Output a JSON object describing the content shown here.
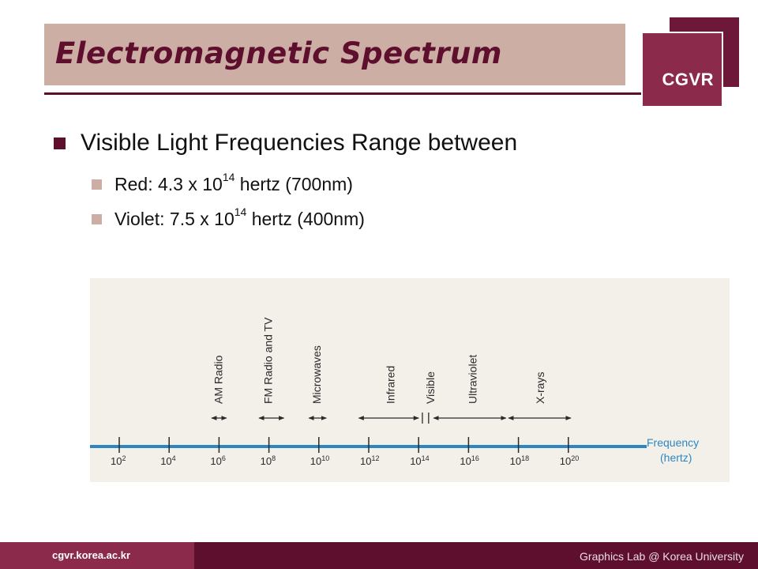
{
  "slide": {
    "title": "Electromagnetic Spectrum",
    "logo": "CGVR",
    "bullet": "Visible Light Frequencies Range between",
    "subbullets": [
      {
        "label": "Red: 4.3 x 10",
        "exponent": "14",
        "suffix": " hertz (700nm)"
      },
      {
        "label": "Violet: 7.5 x 10",
        "exponent": "14",
        "suffix": " hertz (400nm)"
      }
    ]
  },
  "diagram": {
    "axis_label_line1": "Frequency",
    "axis_label_line2": "(hertz)",
    "ticks": [
      {
        "base": "10",
        "exp": "2"
      },
      {
        "base": "10",
        "exp": "4"
      },
      {
        "base": "10",
        "exp": "6"
      },
      {
        "base": "10",
        "exp": "8"
      },
      {
        "base": "10",
        "exp": "10"
      },
      {
        "base": "10",
        "exp": "12"
      },
      {
        "base": "10",
        "exp": "14"
      },
      {
        "base": "10",
        "exp": "16"
      },
      {
        "base": "10",
        "exp": "18"
      },
      {
        "base": "10",
        "exp": "20"
      }
    ],
    "bands": [
      {
        "name": "AM Radio",
        "from_exp": 5.7,
        "to_exp": 6.3,
        "label_exp": 6.0
      },
      {
        "name": "FM Radio and TV",
        "from_exp": 7.6,
        "to_exp": 8.6,
        "label_exp": 8.0
      },
      {
        "name": "Microwaves",
        "from_exp": 9.6,
        "to_exp": 10.3,
        "label_exp": 9.95
      },
      {
        "name": "Infrared",
        "from_exp": 11.6,
        "to_exp": 14.0,
        "label_exp": 12.9
      },
      {
        "name": "Visible",
        "from_exp": 14.15,
        "to_exp": 14.4,
        "label_exp": 14.5
      },
      {
        "name": "Ultraviolet",
        "from_exp": 14.6,
        "to_exp": 17.5,
        "label_exp": 16.2
      },
      {
        "name": "X-rays",
        "from_exp": 17.6,
        "to_exp": 20.1,
        "label_exp": 18.9
      }
    ],
    "line_color": "#2e86c1"
  },
  "footer": {
    "url": "cgvr.korea.ac.kr",
    "org": "Graphics Lab @ Korea University"
  }
}
